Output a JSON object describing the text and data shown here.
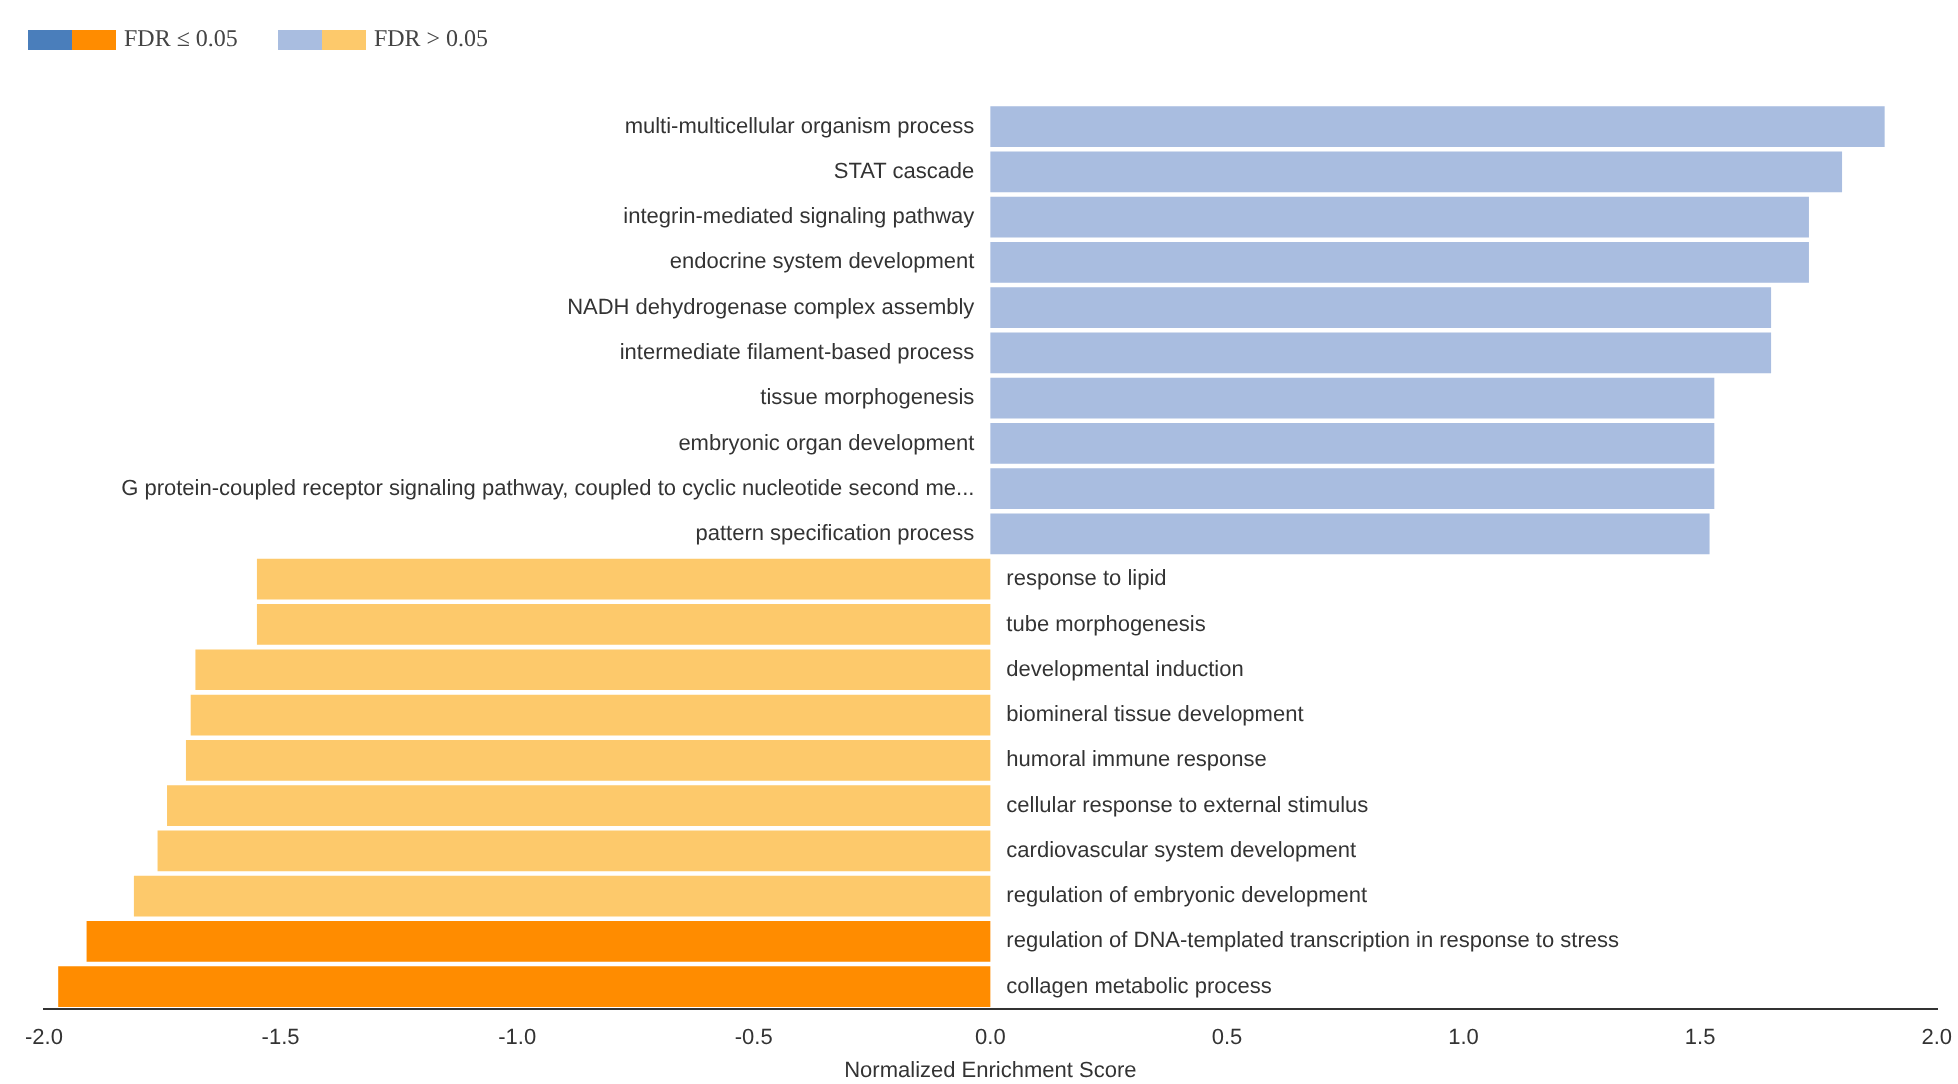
{
  "chart_data": {
    "type": "bar",
    "orientation": "horizontal",
    "xlabel": "Normalized Enrichment Score",
    "categories": [
      "multi-multicellular organism process",
      "STAT cascade",
      "integrin-mediated signaling pathway",
      "endocrine system development",
      "NADH dehydrogenase complex assembly",
      "intermediate filament-based process",
      "tissue morphogenesis",
      "embryonic organ development",
      "G protein-coupled receptor signaling pathway, coupled to cyclic nucleotide second me...",
      "pattern specification process",
      "response to lipid",
      "tube morphogenesis",
      "developmental induction",
      "biomineral tissue development",
      "humoral immune response",
      "cellular response to external stimulus",
      "cardiovascular system development",
      "regulation of embryonic development",
      "regulation of DNA-templated transcription in response to stress",
      "collagen metabolic process"
    ],
    "series": [
      {
        "name": "FDR ≤ 0.05",
        "colors": [
          "#4a7ebb",
          "#4a7ebb",
          "#4a7ebb",
          "#4a7ebb",
          "#4a7ebb",
          "#4a7ebb",
          "#4a7ebb",
          "#4a7ebb",
          "#4a7ebb",
          "#4a7ebb",
          "#ff8c00",
          "#ff8c00",
          "#ff8c00",
          "#ff8c00",
          "#ff8c00",
          "#ff8c00",
          "#ff8c00",
          "#ff8c00",
          "#ff8c00",
          "#ff8c00"
        ],
        "values": [
          null,
          null,
          null,
          null,
          null,
          null,
          null,
          null,
          null,
          null,
          null,
          null,
          null,
          null,
          null,
          null,
          null,
          null,
          -1.91,
          -1.97
        ]
      },
      {
        "name": "FDR > 0.05",
        "colors": [
          "#a9bde0",
          "#a9bde0",
          "#a9bde0",
          "#a9bde0",
          "#a9bde0",
          "#a9bde0",
          "#a9bde0",
          "#a9bde0",
          "#a9bde0",
          "#a9bde0",
          "#fdc96b",
          "#fdc96b",
          "#fdc96b",
          "#fdc96b",
          "#fdc96b",
          "#fdc96b",
          "#fdc96b",
          "#fdc96b",
          "#fdc96b",
          "#fdc96b"
        ],
        "values": [
          1.89,
          1.8,
          1.73,
          1.73,
          1.65,
          1.65,
          1.53,
          1.53,
          1.53,
          1.52,
          -1.55,
          -1.55,
          -1.68,
          -1.69,
          -1.7,
          -1.74,
          -1.76,
          -1.81,
          null,
          null
        ]
      }
    ],
    "xlim": [
      -2.0,
      2.0
    ],
    "xticks": [
      {
        "value": -2,
        "label": "-2.0"
      },
      {
        "value": -1.5,
        "label": "-1.5"
      },
      {
        "value": -1,
        "label": "-1.0"
      },
      {
        "value": -0.5,
        "label": "-0.5"
      },
      {
        "value": 0,
        "label": "0.0"
      },
      {
        "value": 0.5,
        "label": "0.5"
      },
      {
        "value": 1,
        "label": "1.0"
      },
      {
        "value": 1.5,
        "label": "1.5"
      },
      {
        "value": 2,
        "label": "2.0"
      }
    ],
    "grid": false,
    "legend": "top left"
  }
}
